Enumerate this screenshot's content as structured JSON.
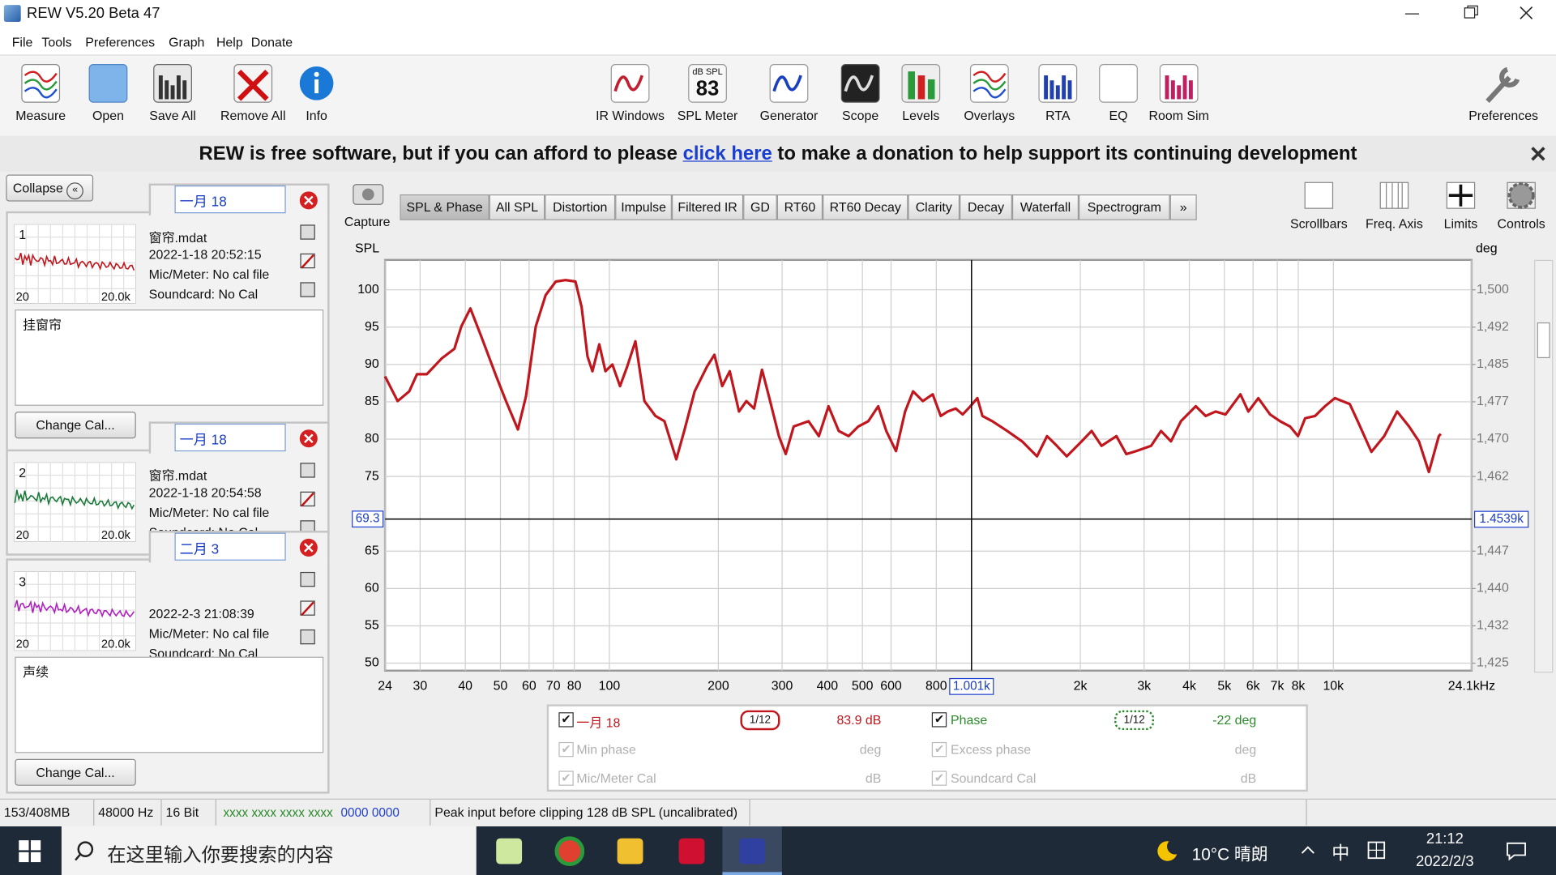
{
  "window": {
    "title": "REW V5.20 Beta 47"
  },
  "menu": [
    "File",
    "Tools",
    "Preferences",
    "Graph",
    "Help",
    "Donate"
  ],
  "toolbar": {
    "left": [
      "Measure",
      "Open",
      "Save All",
      "Remove All",
      "Info"
    ],
    "center": [
      "IR Windows",
      "SPL Meter",
      "Generator",
      "Scope",
      "Levels",
      "Overlays",
      "RTA",
      "EQ",
      "Room Sim"
    ],
    "spl_meter_icon": {
      "unit": "dB SPL",
      "reading": "83"
    },
    "right": "Preferences"
  },
  "banner": {
    "before": "REW is free software, but if you can afford to please",
    "link": "click here",
    "after": "to make a donation to help support its continuing development"
  },
  "sidebar": {
    "collapse": "Collapse",
    "measurements": [
      {
        "name": "一月 18",
        "index": 1,
        "file": "窗帘.mdat",
        "date": "2022-1-18 20:52:15",
        "mic": "Mic/Meter: No cal file",
        "soundcard": "Soundcard: No Cal",
        "note": "挂窗帘",
        "change_cal": "Change Cal...",
        "thumb_x": [
          "20",
          "20.0k"
        ]
      },
      {
        "name": "一月 18",
        "index": 2,
        "file": "窗帘.mdat",
        "date": "2022-1-18 20:54:58",
        "mic": "Mic/Meter: No cal file",
        "soundcard": "Soundcard: No Cal",
        "thumb_x": [
          "20",
          "20.0k"
        ]
      },
      {
        "name": "二月 3",
        "index": 3,
        "date": "2022-2-3 21:08:39",
        "mic": "Mic/Meter: No cal file",
        "soundcard": "Soundcard: No Cal",
        "note": "声续",
        "change_cal": "Change Cal...",
        "thumb_x": [
          "20",
          "20.0k"
        ]
      }
    ]
  },
  "graph": {
    "capture": "Capture",
    "tabs": [
      "SPL & Phase",
      "All SPL",
      "Distortion",
      "Impulse",
      "Filtered IR",
      "GD",
      "RT60",
      "RT60 Decay",
      "Clarity",
      "Decay",
      "Waterfall",
      "Spectrogram",
      "»"
    ],
    "selected_tab": "SPL & Phase",
    "tools": [
      "Scrollbars",
      "Freq. Axis",
      "Limits",
      "Controls"
    ]
  },
  "chart_data": {
    "type": "line",
    "y_label": "SPL",
    "y2_label": "deg",
    "xscale": "log",
    "grid": true,
    "xlim": [
      24,
      24100
    ],
    "xticks": [
      24,
      30,
      40,
      50,
      60,
      70,
      80,
      100,
      200,
      300,
      400,
      500,
      600,
      800,
      {
        "value": 2000,
        "label": "2k"
      },
      {
        "value": 3000,
        "label": "3k"
      },
      {
        "value": 4000,
        "label": "4k"
      },
      {
        "value": 5000,
        "label": "5k"
      },
      {
        "value": 6000,
        "label": "6k"
      },
      {
        "value": 7000,
        "label": "7k"
      },
      {
        "value": 8000,
        "label": "8k"
      },
      {
        "value": 10000,
        "label": "10k"
      },
      {
        "value": 24100,
        "label": "24.1kHz"
      }
    ],
    "ylim": [
      49,
      104
    ],
    "yticks": [
      50,
      55,
      60,
      65,
      75,
      80,
      85,
      90,
      95,
      100
    ],
    "y2lim": [
      1423.5,
      1506
    ],
    "y2ticks": [
      {
        "value": 1500,
        "label": "1,500"
      },
      {
        "value": 1492.5,
        "label": "1,492"
      },
      {
        "value": 1485,
        "label": "1,485"
      },
      {
        "value": 1477.5,
        "label": "1,477"
      },
      {
        "value": 1470,
        "label": "1,470"
      },
      {
        "value": 1462.5,
        "label": "1,462"
      },
      {
        "value": 1447.5,
        "label": "1,447"
      },
      {
        "value": 1440,
        "label": "1,440"
      },
      {
        "value": 1432.5,
        "label": "1,432"
      },
      {
        "value": 1425,
        "label": "1,425"
      }
    ],
    "cursor": {
      "x": {
        "value": 1001,
        "label": "1.001k"
      },
      "y": 69.3,
      "y2": {
        "value": 1453.9,
        "label": "1.4539k"
      }
    },
    "series": [
      {
        "name": "一月 18",
        "color": "#c0161d",
        "x": [
          24,
          26,
          28,
          29.4,
          31.3,
          34.4,
          37.3,
          39,
          41.3,
          44.3,
          48.7,
          51.8,
          55.9,
          58.8,
          62.6,
          66.7,
          71.1,
          75.7,
          80.6,
          83.8,
          87,
          89.8,
          93.8,
          97.5,
          101.9,
          107,
          112,
          118,
          125,
          134,
          142,
          153,
          161,
          172,
          186,
          195,
          205,
          215,
          228,
          239,
          251,
          264,
          276,
          294,
          307,
          323,
          355,
          379,
          403,
          430,
          458,
          487,
          519,
          553,
          582,
          619,
          656,
          690,
          734,
          782,
          823,
          860,
          905,
          946,
          994,
          1039,
          1073,
          1143,
          1256,
          1381,
          1518,
          1618,
          1722,
          1835,
          2017,
          2148,
          2288,
          2515,
          2679,
          2854,
          3137,
          3341,
          3559,
          3792,
          4169,
          4440,
          4728,
          5038,
          5537,
          5822,
          6202,
          6689,
          7126,
          7591,
          7985,
          8357,
          8902,
          9482,
          10099,
          11100,
          11674,
          12737,
          13822,
          15005,
          16183,
          17237,
          18362,
          19560,
          19810
        ],
        "values": [
          88.4,
          85.1,
          86.4,
          88.7,
          88.7,
          90.8,
          92.1,
          95.1,
          97.5,
          93.7,
          88.4,
          85.1,
          81.3,
          85.7,
          95.1,
          99.3,
          101.1,
          101.3,
          101.1,
          97.7,
          91.1,
          89.1,
          92.7,
          89.1,
          90.0,
          87.1,
          89.7,
          93.1,
          85.1,
          83.1,
          82.4,
          77.3,
          81.1,
          86.4,
          89.7,
          91.3,
          87.1,
          89.1,
          83.7,
          85.1,
          84.1,
          89.3,
          85.7,
          80.4,
          78.0,
          81.7,
          82.4,
          80.4,
          84.4,
          81.1,
          80.4,
          81.7,
          82.4,
          84.4,
          81.1,
          78.4,
          83.7,
          86.4,
          85.1,
          86.0,
          83.1,
          83.7,
          84.1,
          83.3,
          84.4,
          85.5,
          83.1,
          82.4,
          81.1,
          79.7,
          77.7,
          80.4,
          79.1,
          77.7,
          79.7,
          81.1,
          79.1,
          80.4,
          78.0,
          78.4,
          79.1,
          81.1,
          79.7,
          82.4,
          84.4,
          83.1,
          83.7,
          83.3,
          86.0,
          83.7,
          85.5,
          83.3,
          82.4,
          81.7,
          80.4,
          82.8,
          83.1,
          84.4,
          85.5,
          84.7,
          82.4,
          78.3,
          80.4,
          83.7,
          81.7,
          79.7,
          75.6,
          80.4,
          80.7
        ]
      }
    ]
  },
  "legend_panel": {
    "rows": [
      {
        "smoothing": "1/12",
        "value": "83.9 dB",
        "right_label": "Phase",
        "right_smoothing": "1/12",
        "right_value": "-22 deg"
      },
      {
        "label": "Min phase",
        "unit": "deg",
        "right_label": "Excess phase",
        "right_unit": "deg"
      },
      {
        "label": "Mic/Meter Cal",
        "unit": "dB",
        "right_label": "Soundcard Cal",
        "right_unit": "dB"
      }
    ]
  },
  "status": {
    "memory": "153/408MB",
    "rate": "48000 Hz",
    "bits": "16 Bit",
    "level_green": "xxxx xxxx  xxxx xxxx",
    "level_blue": "0000 0000",
    "message": "Peak input before clipping 128 dB SPL (uncalibrated)"
  },
  "taskbar": {
    "search": "在这里输入你要搜索的内容",
    "weather": "10°C 晴朗",
    "ime": "中",
    "time": "21:12",
    "date": "2022/2/3"
  }
}
